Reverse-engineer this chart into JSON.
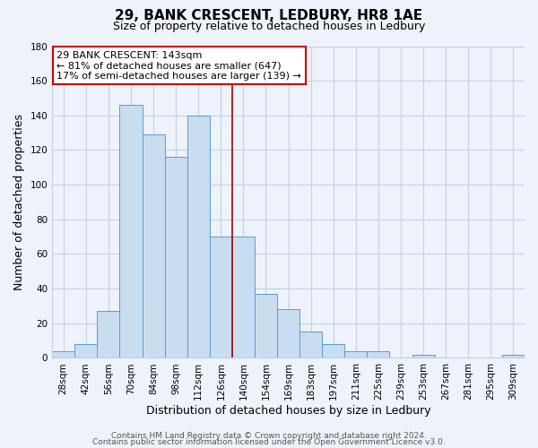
{
  "title": "29, BANK CRESCENT, LEDBURY, HR8 1AE",
  "subtitle": "Size of property relative to detached houses in Ledbury",
  "xlabel": "Distribution of detached houses by size in Ledbury",
  "ylabel": "Number of detached properties",
  "bar_labels": [
    "28sqm",
    "42sqm",
    "56sqm",
    "70sqm",
    "84sqm",
    "98sqm",
    "112sqm",
    "126sqm",
    "140sqm",
    "154sqm",
    "169sqm",
    "183sqm",
    "197sqm",
    "211sqm",
    "225sqm",
    "239sqm",
    "253sqm",
    "267sqm",
    "281sqm",
    "295sqm",
    "309sqm"
  ],
  "bar_heights": [
    4,
    8,
    27,
    146,
    129,
    116,
    140,
    70,
    70,
    37,
    28,
    15,
    8,
    4,
    4,
    0,
    2,
    0,
    0,
    0,
    2
  ],
  "bar_color": "#c8ddf0",
  "bar_edge_color": "#5b9bd5",
  "vline_x_index": 7.5,
  "vline_color": "#aa0000",
  "annotation_line1": "29 BANK CRESCENT: 143sqm",
  "annotation_line2": "← 81% of detached houses are smaller (647)",
  "annotation_line3": "17% of semi-detached houses are larger (139) →",
  "annotation_box_color": "#ffffff",
  "annotation_box_edge": "#cc0000",
  "ylim": [
    0,
    180
  ],
  "yticks": [
    0,
    20,
    40,
    60,
    80,
    100,
    120,
    140,
    160,
    180
  ],
  "footer_line1": "Contains HM Land Registry data © Crown copyright and database right 2024.",
  "footer_line2": "Contains public sector information licensed under the Open Government Licence v3.0.",
  "background_color": "#eef2fa",
  "grid_color": "#c8d0e0",
  "title_fontsize": 11,
  "subtitle_fontsize": 9,
  "axis_label_fontsize": 9,
  "tick_fontsize": 7.5,
  "annotation_fontsize": 8,
  "footer_fontsize": 6.5
}
